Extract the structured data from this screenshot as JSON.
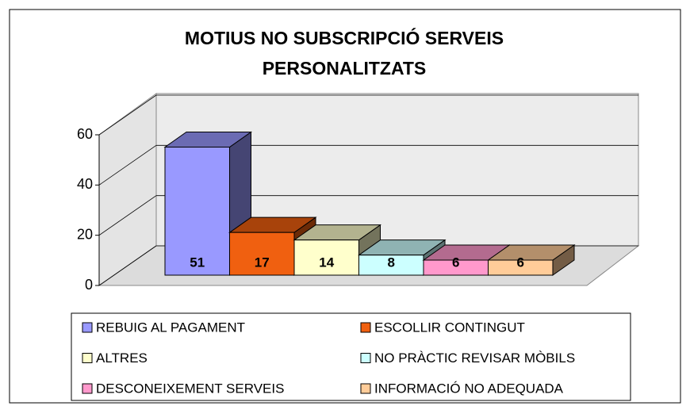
{
  "chart_data": {
    "type": "bar3d",
    "title": [
      "MOTIUS NO SUBSCRIPCIÓ SERVEIS",
      "PERSONALITZATS"
    ],
    "categories": [
      "REBUIG AL PAGAMENT",
      "ESCOLLIR CONTINGUT",
      "ALTRES",
      "NO PRÀCTIC REVISAR MÒBILS",
      "DESCONEIXEMENT SERVEIS",
      "INFORMACIÓ NO ADEQUADA"
    ],
    "values": [
      51,
      17,
      14,
      8,
      6,
      6
    ],
    "colors": [
      "#9999ff",
      "#f06010",
      "#ffffcc",
      "#ccffff",
      "#ff99cc",
      "#ffcc99"
    ],
    "ylim": [
      0,
      60
    ],
    "yticks": [
      0,
      20,
      40,
      60
    ],
    "grid": true,
    "legend": "bottom"
  }
}
